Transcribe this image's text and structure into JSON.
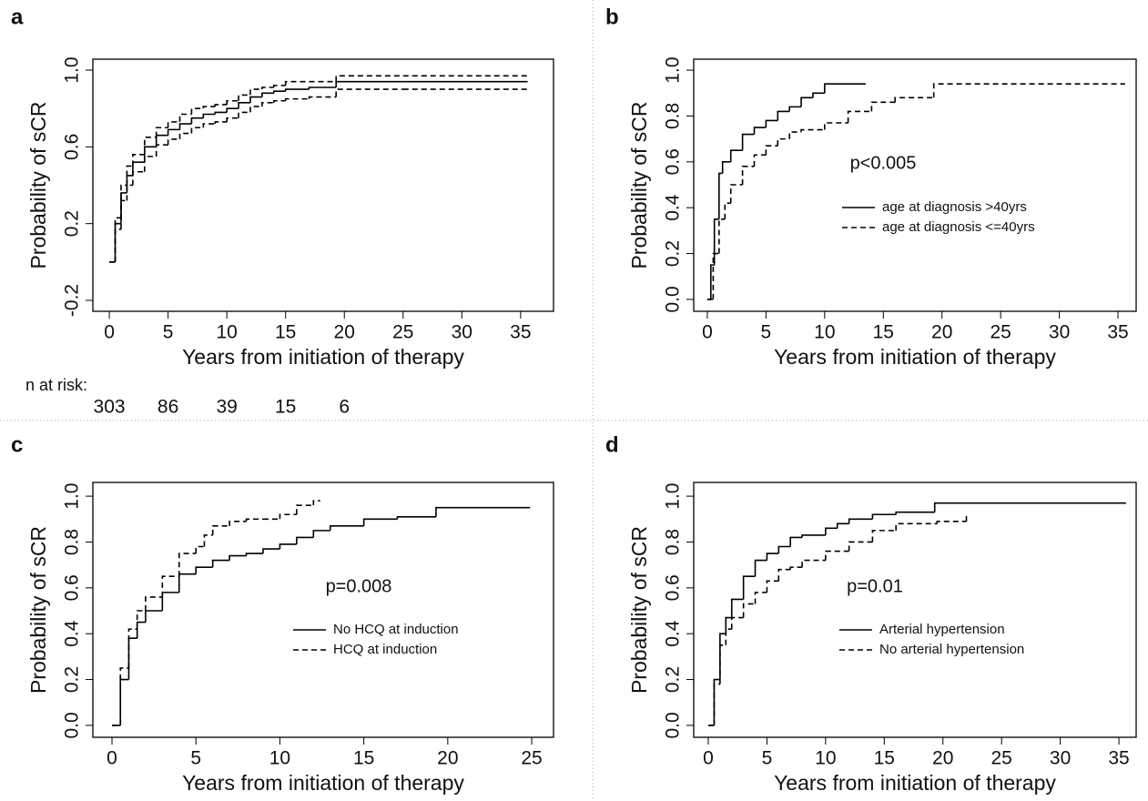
{
  "chart_data": [
    {
      "type": "line",
      "panel_label": "a",
      "xlabel": "Years from initiation of therapy",
      "ylabel": "Probability of sCR",
      "xlim": [
        -1.4,
        37.8
      ],
      "ylim": [
        -0.257,
        1.057
      ],
      "xticks": [
        0,
        5,
        10,
        15,
        20,
        25,
        30,
        35
      ],
      "yticks": [
        -0.2,
        0.2,
        0.6,
        {
          "value": 1,
          "label": "1.0"
        }
      ],
      "series": [
        {
          "color": "#000000",
          "dash": false,
          "x": [
            0,
            0.5,
            1,
            1.5,
            2,
            3,
            4,
            5,
            6,
            7,
            8,
            9,
            10,
            11,
            12,
            13,
            14,
            15,
            17,
            19.3,
            25,
            35.6
          ],
          "values": [
            0,
            0.2,
            0.36,
            0.45,
            0.52,
            0.6,
            0.66,
            0.69,
            0.72,
            0.75,
            0.77,
            0.78,
            0.8,
            0.83,
            0.86,
            0.88,
            0.89,
            0.9,
            0.91,
            0.94,
            0.94,
            0.94
          ]
        },
        {
          "color": "#000000",
          "dash": true,
          "x": [
            0,
            0.5,
            1,
            1.5,
            2,
            3,
            4,
            5,
            6,
            7,
            8,
            9,
            10,
            11,
            12,
            13,
            14,
            15,
            17,
            19.3,
            25,
            35.6
          ],
          "values": [
            0,
            0.23,
            0.4,
            0.5,
            0.56,
            0.65,
            0.7,
            0.73,
            0.77,
            0.8,
            0.81,
            0.82,
            0.84,
            0.87,
            0.9,
            0.91,
            0.92,
            0.94,
            0.94,
            0.97,
            0.97,
            0.97
          ]
        },
        {
          "color": "#000000",
          "dash": true,
          "x": [
            0,
            0.5,
            1,
            1.5,
            2,
            3,
            4,
            5,
            6,
            7,
            8,
            9,
            10,
            11,
            12,
            13,
            14,
            15,
            17,
            19.3,
            25,
            35.6
          ],
          "values": [
            0,
            0.17,
            0.32,
            0.4,
            0.47,
            0.55,
            0.61,
            0.64,
            0.67,
            0.7,
            0.72,
            0.73,
            0.75,
            0.78,
            0.81,
            0.83,
            0.84,
            0.85,
            0.86,
            0.9,
            0.9,
            0.9
          ]
        }
      ],
      "risk_label": "n at risk:",
      "at_risk": [
        303,
        86,
        39,
        15,
        6
      ]
    },
    {
      "type": "line",
      "panel_label": "b",
      "xlabel": "Years from initiation of therapy",
      "ylabel": "Probability of sCR",
      "xlim": [
        -1.16,
        36.55
      ],
      "ylim": [
        -0.052,
        1.048
      ],
      "xticks": [
        0,
        5,
        10,
        15,
        20,
        25,
        30,
        35
      ],
      "yticks": [
        {
          "value": 0,
          "label": "0.0"
        },
        0.2,
        0.4,
        0.6,
        0.8,
        {
          "value": 1,
          "label": "1.0"
        }
      ],
      "series": [
        {
          "name": "age at diagnosis >40yrs",
          "color": "#000000",
          "dash": false,
          "x": [
            0,
            0.3,
            0.6,
            1,
            1.3,
            2,
            3,
            4,
            5,
            6,
            7,
            8,
            9,
            10,
            13.5
          ],
          "values": [
            0,
            0.15,
            0.35,
            0.55,
            0.6,
            0.65,
            0.72,
            0.75,
            0.78,
            0.82,
            0.84,
            0.88,
            0.9,
            0.94,
            0.94
          ]
        },
        {
          "name": "age at diagnosis <=40yrs",
          "color": "#000000",
          "dash": true,
          "x": [
            0,
            0.5,
            1,
            1.5,
            2,
            3,
            4,
            5,
            6,
            7,
            8,
            10,
            12,
            14,
            16,
            19.3,
            35.6
          ],
          "values": [
            0,
            0.2,
            0.35,
            0.42,
            0.5,
            0.58,
            0.63,
            0.67,
            0.7,
            0.73,
            0.74,
            0.77,
            0.82,
            0.86,
            0.88,
            0.94,
            0.94
          ]
        }
      ],
      "annotation": "p<0.005"
    },
    {
      "type": "line",
      "panel_label": "c",
      "xlabel": "Years from initiation of therapy",
      "ylabel": "Probability of sCR",
      "xlim": [
        -1.14,
        26.3
      ],
      "ylim": [
        -0.052,
        1.06
      ],
      "xticks": [
        0,
        5,
        10,
        15,
        20,
        25
      ],
      "yticks": [
        {
          "value": 0,
          "label": "0.0"
        },
        0.2,
        0.4,
        0.6,
        0.8,
        {
          "value": 1,
          "label": "1.0"
        }
      ],
      "series": [
        {
          "name": "No HCQ at induction",
          "color": "#000000",
          "dash": false,
          "x": [
            0,
            0.5,
            1,
            1.5,
            2,
            3,
            4,
            5,
            6,
            7,
            8,
            9,
            10,
            11,
            12,
            13,
            15,
            17,
            19.3,
            24.9
          ],
          "values": [
            0,
            0.2,
            0.38,
            0.45,
            0.5,
            0.58,
            0.66,
            0.69,
            0.72,
            0.74,
            0.75,
            0.77,
            0.79,
            0.82,
            0.85,
            0.87,
            0.9,
            0.91,
            0.95,
            0.95
          ]
        },
        {
          "name": "HCQ at induction",
          "color": "#000000",
          "dash": true,
          "x": [
            0,
            0.5,
            1,
            1.5,
            2,
            3,
            4,
            5,
            5.5,
            6,
            7,
            8,
            9,
            10,
            11,
            12,
            12.4
          ],
          "values": [
            0,
            0.25,
            0.42,
            0.5,
            0.56,
            0.65,
            0.75,
            0.78,
            0.83,
            0.87,
            0.89,
            0.9,
            0.9,
            0.92,
            0.96,
            0.98,
            0.98
          ]
        }
      ],
      "annotation": "p=0.008"
    },
    {
      "type": "line",
      "panel_label": "d",
      "xlabel": "Years from initiation of therapy",
      "ylabel": "Probability of sCR",
      "xlim": [
        -1.24,
        36.47
      ],
      "ylim": [
        -0.052,
        1.06
      ],
      "xticks": [
        0,
        5,
        10,
        15,
        20,
        25,
        30,
        35
      ],
      "yticks": [
        {
          "value": 0,
          "label": "0.0"
        },
        0.2,
        0.4,
        0.6,
        0.8,
        {
          "value": 1,
          "label": "1.0"
        }
      ],
      "series": [
        {
          "name": "Arterial hypertension",
          "color": "#000000",
          "dash": false,
          "x": [
            0,
            0.5,
            1,
            1.5,
            2,
            3,
            4,
            5,
            6,
            7,
            8,
            10,
            11,
            12,
            14,
            16,
            19.3,
            35.6
          ],
          "values": [
            0,
            0.2,
            0.4,
            0.47,
            0.55,
            0.65,
            0.72,
            0.75,
            0.78,
            0.82,
            0.83,
            0.86,
            0.88,
            0.9,
            0.92,
            0.93,
            0.97,
            0.97
          ]
        },
        {
          "name": "No arterial hypertension",
          "color": "#000000",
          "dash": true,
          "x": [
            0,
            0.5,
            1,
            1.5,
            2,
            3,
            4,
            5,
            6,
            7,
            8,
            10,
            12,
            14,
            16,
            19.5,
            22
          ],
          "values": [
            0,
            0.18,
            0.35,
            0.42,
            0.47,
            0.53,
            0.58,
            0.63,
            0.68,
            0.69,
            0.72,
            0.76,
            0.8,
            0.85,
            0.88,
            0.89,
            0.92
          ]
        }
      ],
      "annotation": "p=0.01"
    }
  ]
}
